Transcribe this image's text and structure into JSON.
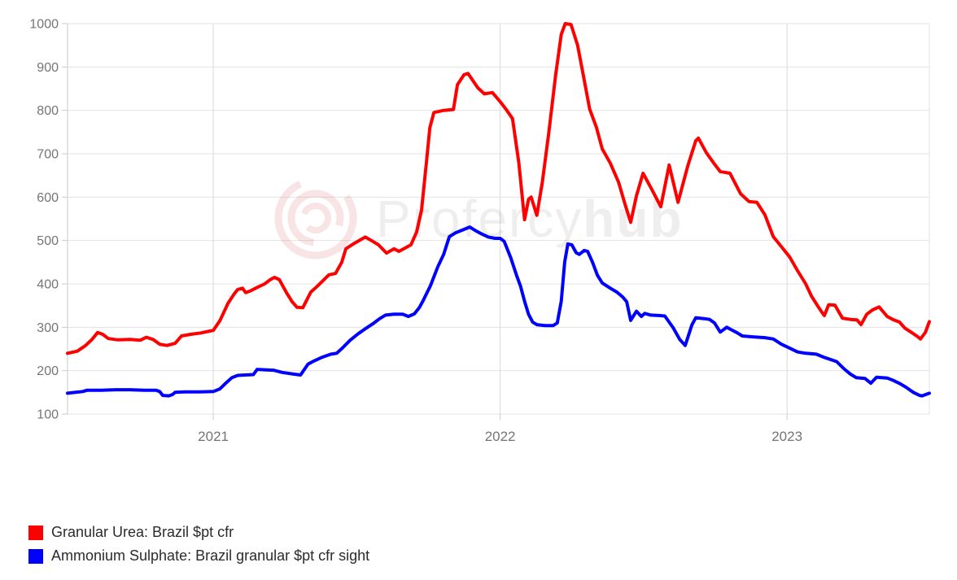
{
  "watermark": {
    "text_main": "Profercy",
    "text_suffix": "hub"
  },
  "chart_data": {
    "type": "line",
    "title": "",
    "xlabel": "",
    "ylabel": "",
    "grid": true,
    "legend_position": "bottom-left",
    "x_axis": {
      "min": 2020.492,
      "max": 2023.496,
      "ticks": [
        2021,
        2022,
        2023
      ],
      "tick_labels": [
        "2021",
        "2022",
        "2023"
      ]
    },
    "y_axis": {
      "min": 100,
      "max": 1000,
      "ticks": [
        100,
        200,
        300,
        400,
        500,
        600,
        700,
        800,
        900,
        1000
      ]
    },
    "colors": {
      "grid": "#e3e3e3",
      "year_grid": "#d9d9d9",
      "axis": "#c9c9c9",
      "tick_label": "#757575",
      "watermark": "#1a1a1a",
      "logo": "#d04040"
    },
    "series": [
      {
        "name": "Granular Urea: Brazil $pt cfr",
        "color": "#ff0000",
        "points": [
          [
            2020.492,
            240
          ],
          [
            2020.526,
            245
          ],
          [
            2020.555,
            258
          ],
          [
            2020.577,
            272
          ],
          [
            2020.597,
            288
          ],
          [
            2020.614,
            284
          ],
          [
            2020.634,
            274
          ],
          [
            2020.668,
            271
          ],
          [
            2020.711,
            272
          ],
          [
            2020.745,
            270
          ],
          [
            2020.767,
            277
          ],
          [
            2020.79,
            272
          ],
          [
            2020.813,
            261
          ],
          [
            2020.838,
            258
          ],
          [
            2020.867,
            263
          ],
          [
            2020.889,
            280
          ],
          [
            2020.923,
            284
          ],
          [
            2020.957,
            287
          ],
          [
            2021.0,
            293
          ],
          [
            2021.023,
            315
          ],
          [
            2021.051,
            355
          ],
          [
            2021.074,
            378
          ],
          [
            2021.085,
            387
          ],
          [
            2021.102,
            390
          ],
          [
            2021.113,
            380
          ],
          [
            2021.13,
            384
          ],
          [
            2021.15,
            391
          ],
          [
            2021.179,
            400
          ],
          [
            2021.199,
            410
          ],
          [
            2021.213,
            415
          ],
          [
            2021.23,
            410
          ],
          [
            2021.255,
            380
          ],
          [
            2021.275,
            359
          ],
          [
            2021.292,
            346
          ],
          [
            2021.312,
            345
          ],
          [
            2021.34,
            381
          ],
          [
            2021.363,
            395
          ],
          [
            2021.403,
            421
          ],
          [
            2021.426,
            424
          ],
          [
            2021.448,
            450
          ],
          [
            2021.462,
            481
          ],
          [
            2021.488,
            492
          ],
          [
            2021.53,
            508
          ],
          [
            2021.556,
            498
          ],
          [
            2021.576,
            490
          ],
          [
            2021.604,
            471
          ],
          [
            2021.63,
            481
          ],
          [
            2021.647,
            475
          ],
          [
            2021.672,
            484
          ],
          [
            2021.689,
            490
          ],
          [
            2021.709,
            520
          ],
          [
            2021.726,
            570
          ],
          [
            2021.743,
            680
          ],
          [
            2021.755,
            760
          ],
          [
            2021.769,
            795
          ],
          [
            2021.803,
            800
          ],
          [
            2021.837,
            802
          ],
          [
            2021.851,
            859
          ],
          [
            2021.874,
            882
          ],
          [
            2021.888,
            885
          ],
          [
            2021.922,
            852
          ],
          [
            2021.945,
            838
          ],
          [
            2021.973,
            841
          ],
          [
            2022.0,
            820
          ],
          [
            2022.02,
            803
          ],
          [
            2022.043,
            781
          ],
          [
            2022.065,
            680
          ],
          [
            2022.085,
            548
          ],
          [
            2022.099,
            595
          ],
          [
            2022.108,
            600
          ],
          [
            2022.128,
            558
          ],
          [
            2022.147,
            634
          ],
          [
            2022.17,
            750
          ],
          [
            2022.193,
            880
          ],
          [
            2022.213,
            975
          ],
          [
            2022.227,
            1000
          ],
          [
            2022.247,
            998
          ],
          [
            2022.27,
            950
          ],
          [
            2022.289,
            884
          ],
          [
            2022.312,
            803
          ],
          [
            2022.335,
            762
          ],
          [
            2022.356,
            711
          ],
          [
            2022.384,
            678
          ],
          [
            2022.413,
            634
          ],
          [
            2022.435,
            584
          ],
          [
            2022.455,
            542
          ],
          [
            2022.475,
            603
          ],
          [
            2022.498,
            655
          ],
          [
            2022.526,
            621
          ],
          [
            2022.56,
            578
          ],
          [
            2022.589,
            674
          ],
          [
            2022.62,
            588
          ],
          [
            2022.654,
            672
          ],
          [
            2022.682,
            730
          ],
          [
            2022.691,
            736
          ],
          [
            2022.719,
            702
          ],
          [
            2022.745,
            678
          ],
          [
            2022.767,
            659
          ],
          [
            2022.801,
            655
          ],
          [
            2022.838,
            608
          ],
          [
            2022.867,
            590
          ],
          [
            2022.895,
            588
          ],
          [
            2022.923,
            559
          ],
          [
            2022.952,
            509
          ],
          [
            2022.98,
            486
          ],
          [
            2023.009,
            462
          ],
          [
            2023.037,
            430
          ],
          [
            2023.065,
            400
          ],
          [
            2023.085,
            372
          ],
          [
            2023.108,
            348
          ],
          [
            2023.122,
            334
          ],
          [
            2023.13,
            327
          ],
          [
            2023.145,
            352
          ],
          [
            2023.167,
            351
          ],
          [
            2023.193,
            321
          ],
          [
            2023.221,
            318
          ],
          [
            2023.244,
            317
          ],
          [
            2023.258,
            306
          ],
          [
            2023.278,
            330
          ],
          [
            2023.298,
            340
          ],
          [
            2023.321,
            347
          ],
          [
            2023.349,
            325
          ],
          [
            2023.372,
            317
          ],
          [
            2023.392,
            312
          ],
          [
            2023.411,
            298
          ],
          [
            2023.434,
            288
          ],
          [
            2023.454,
            279
          ],
          [
            2023.465,
            273
          ],
          [
            2023.482,
            288
          ],
          [
            2023.496,
            313
          ]
        ]
      },
      {
        "name": "Ammonium Sulphate: Brazil granular $pt cfr sight",
        "color": "#0000ff",
        "points": [
          [
            2020.492,
            148
          ],
          [
            2020.52,
            150
          ],
          [
            2020.545,
            152
          ],
          [
            2020.56,
            155
          ],
          [
            2020.61,
            155
          ],
          [
            2020.66,
            156
          ],
          [
            2020.71,
            156
          ],
          [
            2020.76,
            155
          ],
          [
            2020.8,
            155
          ],
          [
            2020.813,
            152
          ],
          [
            2020.824,
            143
          ],
          [
            2020.845,
            142
          ],
          [
            2020.858,
            145
          ],
          [
            2020.867,
            150
          ],
          [
            2020.9,
            151
          ],
          [
            2020.95,
            151
          ],
          [
            2021.0,
            152
          ],
          [
            2021.023,
            158
          ],
          [
            2021.045,
            172
          ],
          [
            2021.065,
            184
          ],
          [
            2021.085,
            189
          ],
          [
            2021.11,
            190
          ],
          [
            2021.14,
            191
          ],
          [
            2021.153,
            203
          ],
          [
            2021.18,
            202
          ],
          [
            2021.21,
            201
          ],
          [
            2021.24,
            196
          ],
          [
            2021.28,
            192
          ],
          [
            2021.304,
            190
          ],
          [
            2021.33,
            215
          ],
          [
            2021.35,
            222
          ],
          [
            2021.38,
            231
          ],
          [
            2021.41,
            238
          ],
          [
            2021.43,
            240
          ],
          [
            2021.45,
            252
          ],
          [
            2021.477,
            270
          ],
          [
            2021.505,
            285
          ],
          [
            2021.533,
            298
          ],
          [
            2021.556,
            308
          ],
          [
            2021.58,
            320
          ],
          [
            2021.6,
            328
          ],
          [
            2021.63,
            330
          ],
          [
            2021.66,
            330
          ],
          [
            2021.68,
            325
          ],
          [
            2021.701,
            331
          ],
          [
            2021.718,
            345
          ],
          [
            2021.732,
            362
          ],
          [
            2021.757,
            396
          ],
          [
            2021.783,
            440
          ],
          [
            2021.803,
            468
          ],
          [
            2021.823,
            509
          ],
          [
            2021.845,
            518
          ],
          [
            2021.868,
            524
          ],
          [
            2021.894,
            531
          ],
          [
            2021.916,
            522
          ],
          [
            2021.936,
            515
          ],
          [
            2021.959,
            508
          ],
          [
            2021.982,
            505
          ],
          [
            2022.0,
            505
          ],
          [
            2022.014,
            498
          ],
          [
            2022.037,
            460
          ],
          [
            2022.057,
            420
          ],
          [
            2022.071,
            395
          ],
          [
            2022.085,
            360
          ],
          [
            2022.099,
            330
          ],
          [
            2022.113,
            312
          ],
          [
            2022.128,
            306
          ],
          [
            2022.156,
            304
          ],
          [
            2022.185,
            304
          ],
          [
            2022.199,
            310
          ],
          [
            2022.213,
            360
          ],
          [
            2022.225,
            450
          ],
          [
            2022.236,
            492
          ],
          [
            2022.25,
            490
          ],
          [
            2022.265,
            472
          ],
          [
            2022.276,
            468
          ],
          [
            2022.293,
            477
          ],
          [
            2022.305,
            475
          ],
          [
            2022.322,
            450
          ],
          [
            2022.339,
            420
          ],
          [
            2022.356,
            402
          ],
          [
            2022.384,
            390
          ],
          [
            2022.407,
            381
          ],
          [
            2022.427,
            370
          ],
          [
            2022.441,
            359
          ],
          [
            2022.455,
            316
          ],
          [
            2022.475,
            337
          ],
          [
            2022.492,
            325
          ],
          [
            2022.504,
            332
          ],
          [
            2022.526,
            328
          ],
          [
            2022.555,
            327
          ],
          [
            2022.574,
            326
          ],
          [
            2022.591,
            310
          ],
          [
            2022.603,
            299
          ],
          [
            2022.626,
            272
          ],
          [
            2022.645,
            258
          ],
          [
            2022.668,
            305
          ],
          [
            2022.682,
            322
          ],
          [
            2022.711,
            320
          ],
          [
            2022.73,
            318
          ],
          [
            2022.747,
            310
          ],
          [
            2022.767,
            289
          ],
          [
            2022.79,
            300
          ],
          [
            2022.804,
            295
          ],
          [
            2022.824,
            288
          ],
          [
            2022.844,
            280
          ],
          [
            2022.881,
            278
          ],
          [
            2022.923,
            276
          ],
          [
            2022.952,
            273
          ],
          [
            2022.98,
            261
          ],
          [
            2023.009,
            252
          ],
          [
            2023.037,
            243
          ],
          [
            2023.065,
            240
          ],
          [
            2023.102,
            238
          ],
          [
            2023.128,
            231
          ],
          [
            2023.15,
            226
          ],
          [
            2023.173,
            221
          ],
          [
            2023.199,
            204
          ],
          [
            2023.221,
            192
          ],
          [
            2023.241,
            184
          ],
          [
            2023.272,
            182
          ],
          [
            2023.292,
            171
          ],
          [
            2023.312,
            185
          ],
          [
            2023.349,
            183
          ],
          [
            2023.372,
            177
          ],
          [
            2023.394,
            170
          ],
          [
            2023.414,
            162
          ],
          [
            2023.44,
            150
          ],
          [
            2023.462,
            143
          ],
          [
            2023.471,
            142
          ],
          [
            2023.496,
            148
          ]
        ]
      }
    ]
  }
}
